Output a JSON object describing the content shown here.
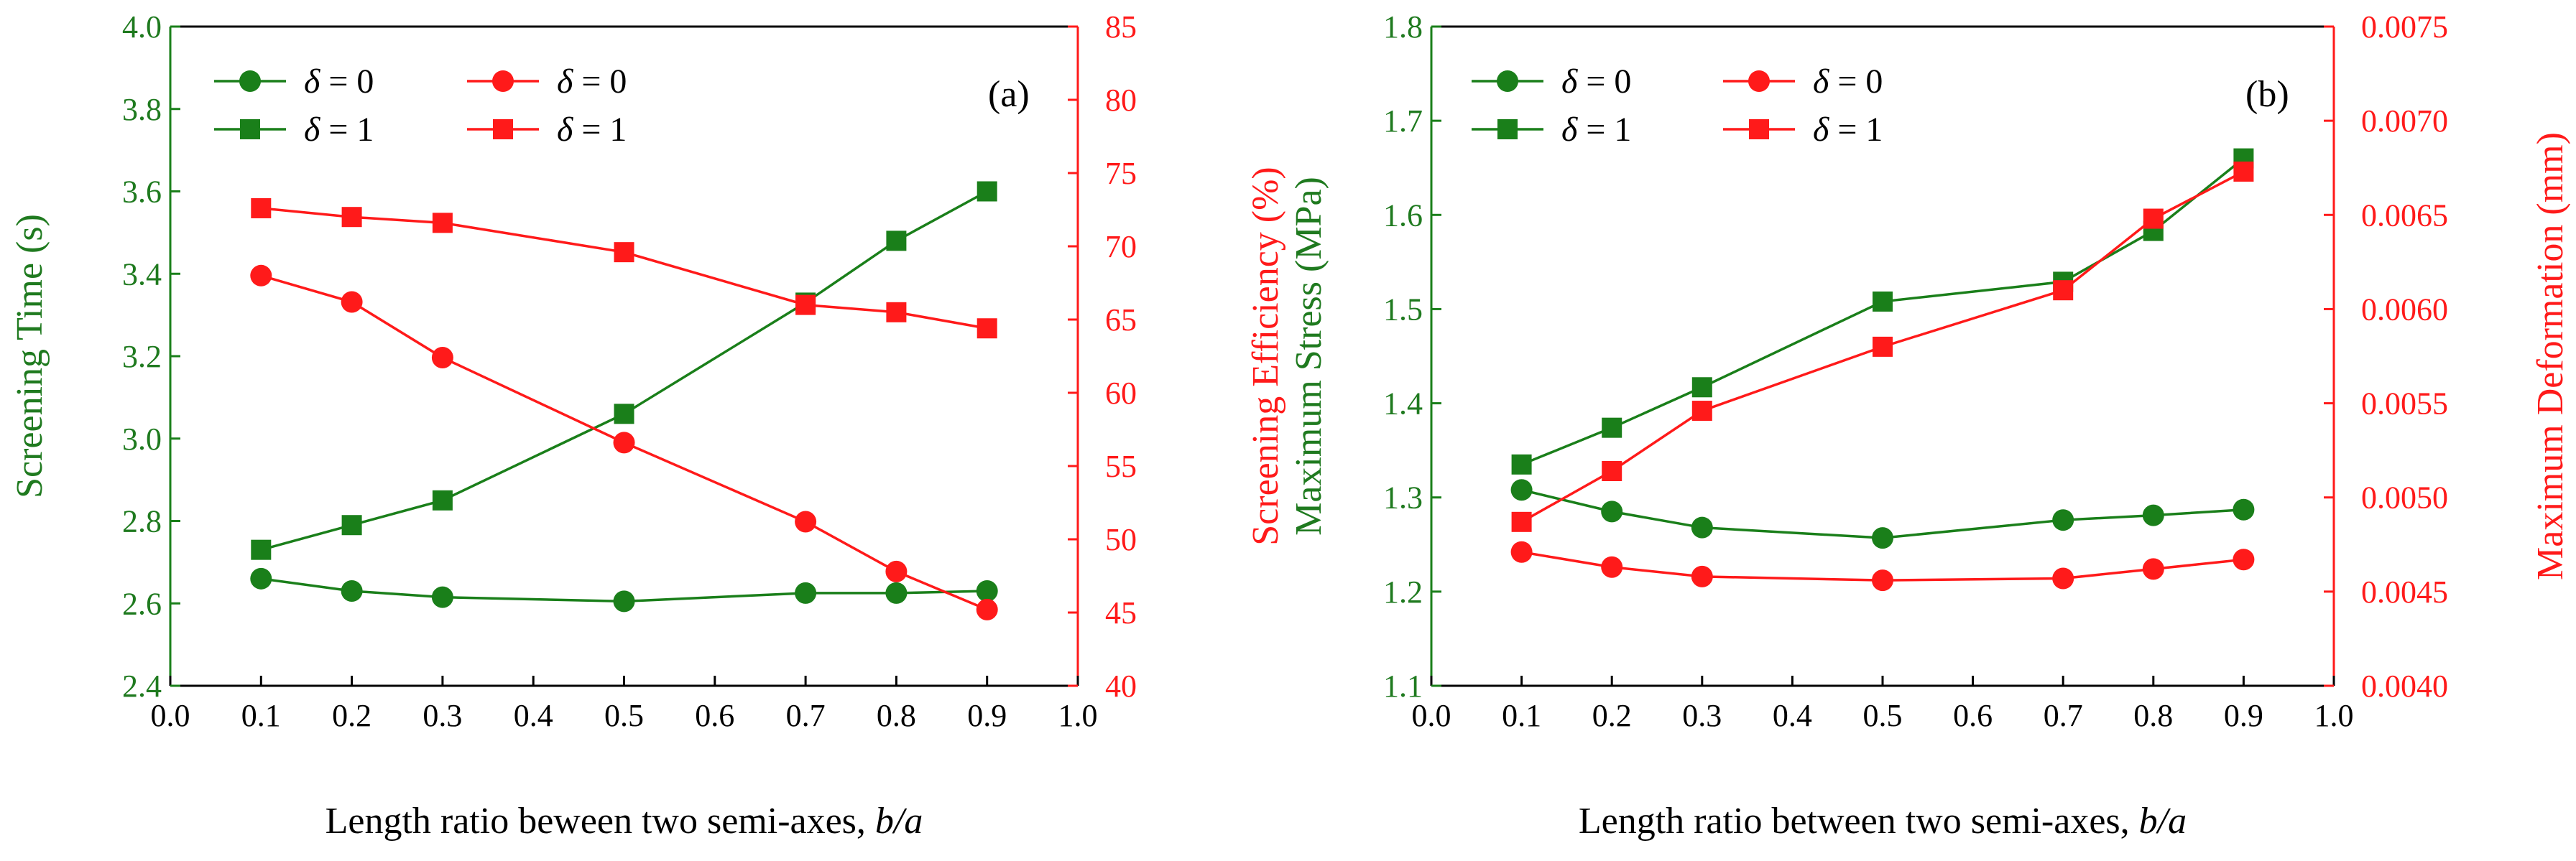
{
  "colors": {
    "green": "#1a7f1a",
    "red": "#ff1a1a",
    "axis": "#000000"
  },
  "chart_data": [
    {
      "type": "line",
      "panel_label": "(a)",
      "xlabel": "Length ratio beween two semi-axes, ",
      "xlabel_italic": "b/a",
      "ylabel_left": "Screening Time (s)",
      "ylabel_right": "Screening Efficiency (%)",
      "xlim": [
        0.0,
        1.0
      ],
      "ylim_left": [
        2.4,
        4.0
      ],
      "ylim_right": [
        40,
        85
      ],
      "xticks": [
        "0.0",
        "0.1",
        "0.2",
        "0.3",
        "0.4",
        "0.5",
        "0.6",
        "0.7",
        "0.8",
        "0.9",
        "1.0"
      ],
      "yticks_left": [
        "2.4",
        "2.6",
        "2.8",
        "3.0",
        "3.2",
        "3.4",
        "3.6",
        "3.8",
        "4.0"
      ],
      "yticks_right": [
        "40",
        "45",
        "50",
        "55",
        "60",
        "65",
        "70",
        "75",
        "80",
        "85"
      ],
      "legend": {
        "symbol": "δ",
        "eq0": " = 0",
        "eq1": " = 1"
      },
      "series": [
        {
          "name": "δ = 0",
          "axis": "left",
          "color": "green",
          "marker": "circle",
          "x": [
            0.1,
            0.2,
            0.3,
            0.5,
            0.7,
            0.8,
            0.9
          ],
          "values": [
            2.66,
            2.63,
            2.615,
            2.605,
            2.625,
            2.625,
            2.63
          ]
        },
        {
          "name": "δ = 1",
          "axis": "left",
          "color": "green",
          "marker": "square",
          "x": [
            0.1,
            0.2,
            0.3,
            0.5,
            0.7,
            0.8,
            0.9
          ],
          "values": [
            2.73,
            2.79,
            2.85,
            3.06,
            3.33,
            3.48,
            3.6
          ]
        },
        {
          "name": "δ = 0",
          "axis": "right",
          "color": "red",
          "marker": "circle",
          "x": [
            0.1,
            0.2,
            0.3,
            0.5,
            0.7,
            0.8,
            0.9
          ],
          "values": [
            68.0,
            66.2,
            62.4,
            56.6,
            51.2,
            47.8,
            45.2
          ]
        },
        {
          "name": "δ = 1",
          "axis": "right",
          "color": "red",
          "marker": "square",
          "x": [
            0.1,
            0.2,
            0.3,
            0.5,
            0.7,
            0.8,
            0.9
          ],
          "values": [
            72.6,
            72.0,
            71.6,
            69.6,
            66.0,
            65.5,
            64.4
          ]
        }
      ]
    },
    {
      "type": "line",
      "panel_label": "(b)",
      "xlabel": "Length ratio between two semi-axes, ",
      "xlabel_italic": "b/a",
      "ylabel_left": "Maximum Stress (MPa)",
      "ylabel_right": "Maximum Deformation (mm)",
      "xlim": [
        0.0,
        1.0
      ],
      "ylim_left": [
        1.1,
        1.8
      ],
      "ylim_right": [
        0.004,
        0.0075
      ],
      "xticks": [
        "0.0",
        "0.1",
        "0.2",
        "0.3",
        "0.4",
        "0.5",
        "0.6",
        "0.7",
        "0.8",
        "0.9",
        "1.0"
      ],
      "yticks_left": [
        "1.1",
        "1.2",
        "1.3",
        "1.4",
        "1.5",
        "1.6",
        "1.7",
        "1.8"
      ],
      "yticks_right": [
        "0.0040",
        "0.0045",
        "0.0050",
        "0.0055",
        "0.0060",
        "0.0065",
        "0.0070",
        "0.0075"
      ],
      "legend": {
        "symbol": "δ",
        "eq0": " = 0",
        "eq1": " = 1"
      },
      "series": [
        {
          "name": "δ = 0",
          "axis": "left",
          "color": "green",
          "marker": "circle",
          "x": [
            0.1,
            0.2,
            0.3,
            0.5,
            0.7,
            0.8,
            0.9
          ],
          "values": [
            1.308,
            1.285,
            1.268,
            1.257,
            1.276,
            1.281,
            1.287
          ]
        },
        {
          "name": "δ = 1",
          "axis": "left",
          "color": "green",
          "marker": "square",
          "x": [
            0.1,
            0.2,
            0.3,
            0.5,
            0.7,
            0.8,
            0.9
          ],
          "values": [
            1.335,
            1.374,
            1.417,
            1.508,
            1.529,
            1.583,
            1.66
          ]
        },
        {
          "name": "δ = 0",
          "axis": "right",
          "color": "red",
          "marker": "circle",
          "x": [
            0.1,
            0.2,
            0.3,
            0.5,
            0.7,
            0.8,
            0.9
          ],
          "values": [
            0.00471,
            0.00463,
            0.00458,
            0.00456,
            0.00457,
            0.00462,
            0.00467
          ]
        },
        {
          "name": "δ = 1",
          "axis": "right",
          "color": "red",
          "marker": "square",
          "x": [
            0.1,
            0.2,
            0.3,
            0.5,
            0.7,
            0.8,
            0.9
          ],
          "values": [
            0.00487,
            0.00514,
            0.00546,
            0.0058,
            0.0061,
            0.00648,
            0.00673
          ]
        }
      ]
    }
  ]
}
